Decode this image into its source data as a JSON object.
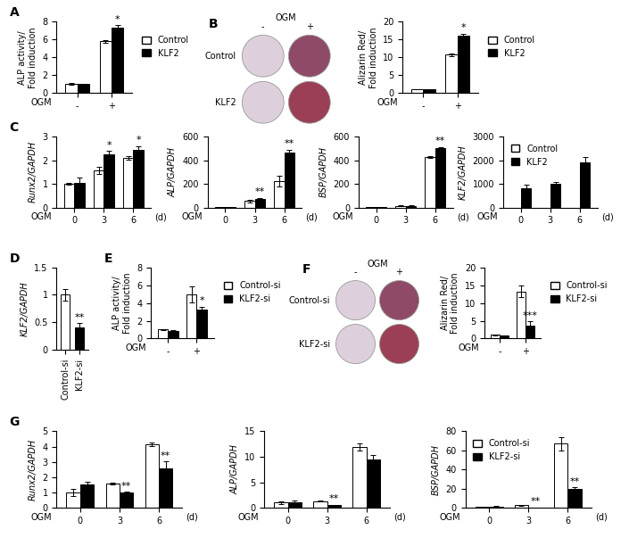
{
  "chart_data": [
    {
      "type": "bar",
      "panel": "A",
      "ylabel": "ALP activity/\nFold induction",
      "xlabel": "OGM",
      "categories": [
        "-",
        "+"
      ],
      "ylim": [
        0,
        8
      ],
      "yticks": [
        0,
        2,
        4,
        6,
        8
      ],
      "legend": "right",
      "series": [
        {
          "name": "Control",
          "color": "#ffffff",
          "values": [
            1,
            5.8
          ],
          "errors": [
            0.1,
            0.15
          ]
        },
        {
          "name": "KLF2",
          "color": "#000000",
          "values": [
            1.0,
            7.3
          ],
          "errors": [
            0.05,
            0.35
          ],
          "stars": [
            null,
            "*"
          ]
        }
      ]
    },
    {
      "type": "bar",
      "panel": "B",
      "ylabel": "Alizarin Red/\nFold induction",
      "xlabel": "OGM",
      "wells": {
        "header": "OGM",
        "columns": [
          "-",
          "+"
        ],
        "rows": [
          "Control",
          "KLF2"
        ]
      },
      "categories": [
        "-",
        "+"
      ],
      "ylim": [
        0,
        20
      ],
      "yticks": [
        0,
        5,
        10,
        15,
        20
      ],
      "legend": "right",
      "series": [
        {
          "name": "Control",
          "color": "#ffffff",
          "values": [
            1,
            10.7
          ],
          "errors": [
            0.1,
            0.3
          ]
        },
        {
          "name": "KLF2",
          "color": "#000000",
          "values": [
            1,
            16
          ],
          "errors": [
            0.1,
            0.7
          ],
          "stars": [
            null,
            "*"
          ]
        }
      ]
    },
    {
      "type": "bar",
      "panel": "C",
      "ylabel": "Runx2/GAPDH",
      "xlabel": "OGM",
      "xsuffix": "(d)",
      "categories": [
        "0",
        "3",
        "6"
      ],
      "ylim": [
        0,
        3
      ],
      "yticks": [
        0,
        1,
        2,
        3
      ],
      "series": [
        {
          "name": "Control",
          "color": "#ffffff",
          "values": [
            1,
            1.55,
            2.1
          ],
          "errors": [
            0.05,
            0.15,
            0.07
          ]
        },
        {
          "name": "KLF2",
          "color": "#000000",
          "values": [
            1.05,
            2.25,
            2.45
          ],
          "errors": [
            0.2,
            0.15,
            0.15
          ],
          "stars": [
            null,
            "*",
            "*"
          ]
        }
      ]
    },
    {
      "type": "bar",
      "ylabel": "ALP/GAPDH",
      "xlabel": "OGM",
      "xsuffix": "(d)",
      "categories": [
        "0",
        "3",
        "6"
      ],
      "ylim": [
        0,
        600
      ],
      "yticks": [
        0,
        200,
        400,
        600
      ],
      "series": [
        {
          "name": "Control",
          "color": "#ffffff",
          "values": [
            1,
            55,
            225
          ],
          "errors": [
            0.5,
            10,
            45
          ]
        },
        {
          "name": "KLF2",
          "color": "#000000",
          "values": [
            1,
            75,
            465
          ],
          "errors": [
            0.5,
            8,
            25
          ],
          "stars": [
            null,
            "**",
            "**"
          ]
        }
      ]
    },
    {
      "type": "bar",
      "ylabel": "BSP/GAPDH",
      "xlabel": "OGM",
      "xsuffix": "(d)",
      "categories": [
        "0",
        "3",
        "6"
      ],
      "ylim": [
        0,
        600
      ],
      "yticks": [
        0,
        200,
        400,
        600
      ],
      "series": [
        {
          "name": "Control",
          "color": "#ffffff",
          "values": [
            1,
            15,
            425
          ],
          "errors": [
            0.5,
            3,
            8
          ]
        },
        {
          "name": "KLF2",
          "color": "#000000",
          "values": [
            1,
            15,
            505
          ],
          "errors": [
            0.5,
            3,
            8
          ],
          "stars": [
            null,
            null,
            "**"
          ]
        }
      ]
    },
    {
      "type": "bar",
      "ylabel": "KLF2/GAPDH",
      "xlabel": "OGM",
      "xsuffix": "(d)",
      "categories": [
        "0",
        "3",
        "6"
      ],
      "ylim": [
        0,
        3000
      ],
      "yticks": [
        0,
        1000,
        2000,
        3000
      ],
      "legend": "upper left",
      "series": [
        {
          "name": "Control",
          "color": "#ffffff",
          "values": [
            1,
            1,
            1
          ],
          "errors": [
            0,
            0,
            0
          ]
        },
        {
          "name": "KLF2",
          "color": "#000000",
          "values": [
            800,
            1000,
            1900
          ],
          "errors": [
            180,
            80,
            250
          ]
        }
      ]
    },
    {
      "type": "bar",
      "panel": "D",
      "ylabel": "KLF2/GAPDH",
      "categories": [
        "Control-si",
        "KLF2-si"
      ],
      "ylim": [
        0,
        1.5
      ],
      "yticks": [
        0,
        0.5,
        1,
        1.5
      ],
      "values": [
        1,
        0.4
      ],
      "errors": [
        0.1,
        0.08
      ],
      "colors": [
        "#ffffff",
        "#000000"
      ],
      "stars": [
        null,
        "**"
      ]
    },
    {
      "type": "bar",
      "panel": "E",
      "ylabel": "ALP activity/\nFold induction",
      "xlabel": "OGM",
      "categories": [
        "-",
        "+"
      ],
      "ylim": [
        0,
        8
      ],
      "yticks": [
        0,
        2,
        4,
        6,
        8
      ],
      "legend": "right",
      "series": [
        {
          "name": "Control-si",
          "color": "#ffffff",
          "values": [
            1,
            4.95
          ],
          "errors": [
            0.1,
            0.9
          ]
        },
        {
          "name": "KLF2-si",
          "color": "#000000",
          "values": [
            0.85,
            3.3
          ],
          "errors": [
            0.05,
            0.3
          ],
          "stars": [
            null,
            "*"
          ]
        }
      ]
    },
    {
      "type": "bar",
      "panel": "F",
      "ylabel": "Alizarin Red/\nFold induction",
      "xlabel": "OGM",
      "wells": {
        "header": "OGM",
        "columns": [
          "-",
          "+"
        ],
        "rows": [
          "Control-si",
          "KLF2-si"
        ]
      },
      "categories": [
        "-",
        "+"
      ],
      "ylim": [
        0,
        20
      ],
      "yticks": [
        0,
        5,
        10,
        15,
        20
      ],
      "legend": "right",
      "series": [
        {
          "name": "Control-si",
          "color": "#ffffff",
          "values": [
            1,
            13.3
          ],
          "errors": [
            0.1,
            1.7
          ]
        },
        {
          "name": "KLF2-si",
          "color": "#000000",
          "values": [
            0.8,
            3.6
          ],
          "errors": [
            0.1,
            1.2
          ],
          "stars": [
            null,
            "***"
          ]
        }
      ]
    },
    {
      "type": "bar",
      "panel": "G",
      "ylabel": "Runx2/GAPDH",
      "xlabel": "OGM",
      "xsuffix": "(d)",
      "categories": [
        "0",
        "3",
        "6"
      ],
      "ylim": [
        0,
        5
      ],
      "yticks": [
        0,
        1,
        2,
        3,
        4,
        5
      ],
      "series": [
        {
          "name": "Control-si",
          "color": "#ffffff",
          "values": [
            1,
            1.6,
            4.15
          ],
          "errors": [
            0.25,
            0.05,
            0.1
          ]
        },
        {
          "name": "KLF2-si",
          "color": "#000000",
          "values": [
            1.5,
            1.0,
            2.6
          ],
          "errors": [
            0.2,
            0.05,
            0.45
          ],
          "stars": [
            null,
            "**",
            "**"
          ]
        }
      ]
    },
    {
      "type": "bar",
      "ylabel": "ALP/GAPDH",
      "xlabel": "OGM",
      "xsuffix": "(d)",
      "categories": [
        "0",
        "3",
        "6"
      ],
      "ylim": [
        0,
        15
      ],
      "yticks": [
        0,
        5,
        10,
        15
      ],
      "series": [
        {
          "name": "Control-si",
          "color": "#ffffff",
          "values": [
            1,
            1.3,
            12
          ],
          "errors": [
            0.2,
            0.1,
            0.7
          ]
        },
        {
          "name": "KLF2-si",
          "color": "#000000",
          "values": [
            1.1,
            0.5,
            9.4
          ],
          "errors": [
            0.3,
            0.1,
            0.9
          ],
          "stars": [
            null,
            "**",
            null
          ]
        }
      ]
    },
    {
      "type": "bar",
      "ylabel": "BSP/GAPDH",
      "xlabel": "OGM",
      "xsuffix": "(d)",
      "categories": [
        "0",
        "3",
        "6"
      ],
      "ylim": [
        0,
        80
      ],
      "yticks": [
        0,
        20,
        40,
        60,
        80
      ],
      "legend": "upper left",
      "series": [
        {
          "name": "Control-si",
          "color": "#ffffff",
          "values": [
            1,
            2.5,
            67
          ],
          "errors": [
            0.5,
            0.4,
            7
          ]
        },
        {
          "name": "KLF2-si",
          "color": "#000000",
          "values": [
            1.5,
            0.5,
            20
          ],
          "errors": [
            0.7,
            0.1,
            1.5
          ],
          "stars": [
            null,
            "**",
            "**"
          ]
        }
      ]
    }
  ]
}
